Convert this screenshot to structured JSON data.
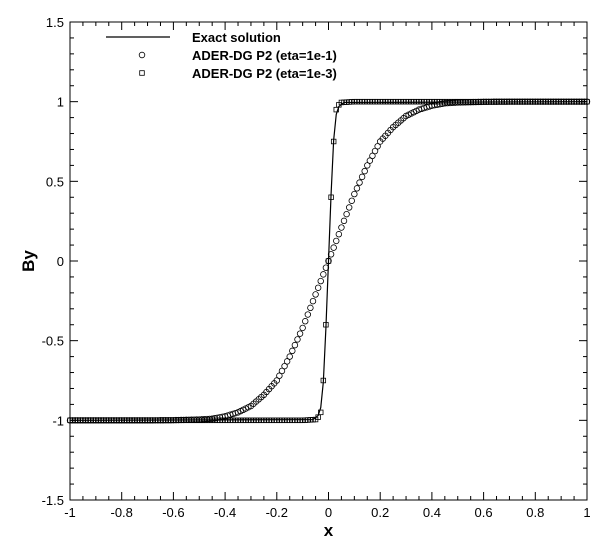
{
  "chart_data": {
    "type": "line",
    "xlabel": "x",
    "ylabel": "By",
    "xlim": [
      -1,
      1
    ],
    "ylim": [
      -1.5,
      1.5
    ],
    "xticks": [
      "-1",
      "-0.8",
      "-0.6",
      "-0.4",
      "-0.2",
      "0",
      "0.2",
      "0.4",
      "0.6",
      "0.8",
      "1"
    ],
    "yticks": [
      "-1.5",
      "-1",
      "-0.5",
      "0",
      "0.5",
      "1",
      "1.5"
    ],
    "grid": false,
    "legend_position": "top-left",
    "series": [
      {
        "name": "Exact solution",
        "marker": "line",
        "x": [
          -1,
          -0.06,
          -0.04,
          -0.03,
          -0.02,
          -0.01,
          0,
          0.01,
          0.02,
          0.03,
          0.04,
          0.06,
          1
        ],
        "y": [
          -1,
          -0.995,
          -0.97,
          -0.92,
          -0.76,
          -0.42,
          0,
          0.42,
          0.76,
          0.92,
          0.97,
          0.995,
          1
        ]
      },
      {
        "name": "ADER-DG P2 (eta=1e-1)",
        "marker": "circle",
        "x": [
          -1,
          -0.9,
          -0.8,
          -0.7,
          -0.6,
          -0.5,
          -0.45,
          -0.4,
          -0.35,
          -0.3,
          -0.25,
          -0.2,
          -0.15,
          -0.1,
          -0.05,
          0,
          0.05,
          0.1,
          0.15,
          0.2,
          0.25,
          0.3,
          0.35,
          0.4,
          0.45,
          0.5,
          0.6,
          0.7,
          0.8,
          0.9,
          1
        ],
        "y": [
          -1,
          -1,
          -1,
          -1,
          -0.999,
          -0.995,
          -0.99,
          -0.975,
          -0.95,
          -0.91,
          -0.84,
          -0.75,
          -0.6,
          -0.42,
          -0.21,
          0,
          0.21,
          0.42,
          0.6,
          0.75,
          0.84,
          0.91,
          0.95,
          0.975,
          0.99,
          0.995,
          0.999,
          1,
          1,
          1,
          1
        ]
      },
      {
        "name": "ADER-DG P2 (eta=1e-3)",
        "marker": "square",
        "x": [
          -1,
          -0.9,
          -0.8,
          -0.7,
          -0.6,
          -0.5,
          -0.4,
          -0.3,
          -0.2,
          -0.1,
          -0.05,
          -0.04,
          -0.03,
          -0.02,
          -0.01,
          0,
          0.01,
          0.02,
          0.03,
          0.04,
          0.05,
          0.1,
          0.2,
          0.3,
          0.4,
          0.5,
          0.6,
          0.7,
          0.8,
          0.9,
          1
        ],
        "y": [
          -1,
          -1,
          -1,
          -1,
          -1,
          -1,
          -1,
          -1,
          -1,
          -1,
          -0.995,
          -0.98,
          -0.95,
          -0.75,
          -0.4,
          0,
          0.4,
          0.75,
          0.95,
          0.98,
          0.995,
          1,
          1,
          1,
          1,
          1,
          1,
          1,
          1,
          1,
          1
        ]
      }
    ]
  }
}
